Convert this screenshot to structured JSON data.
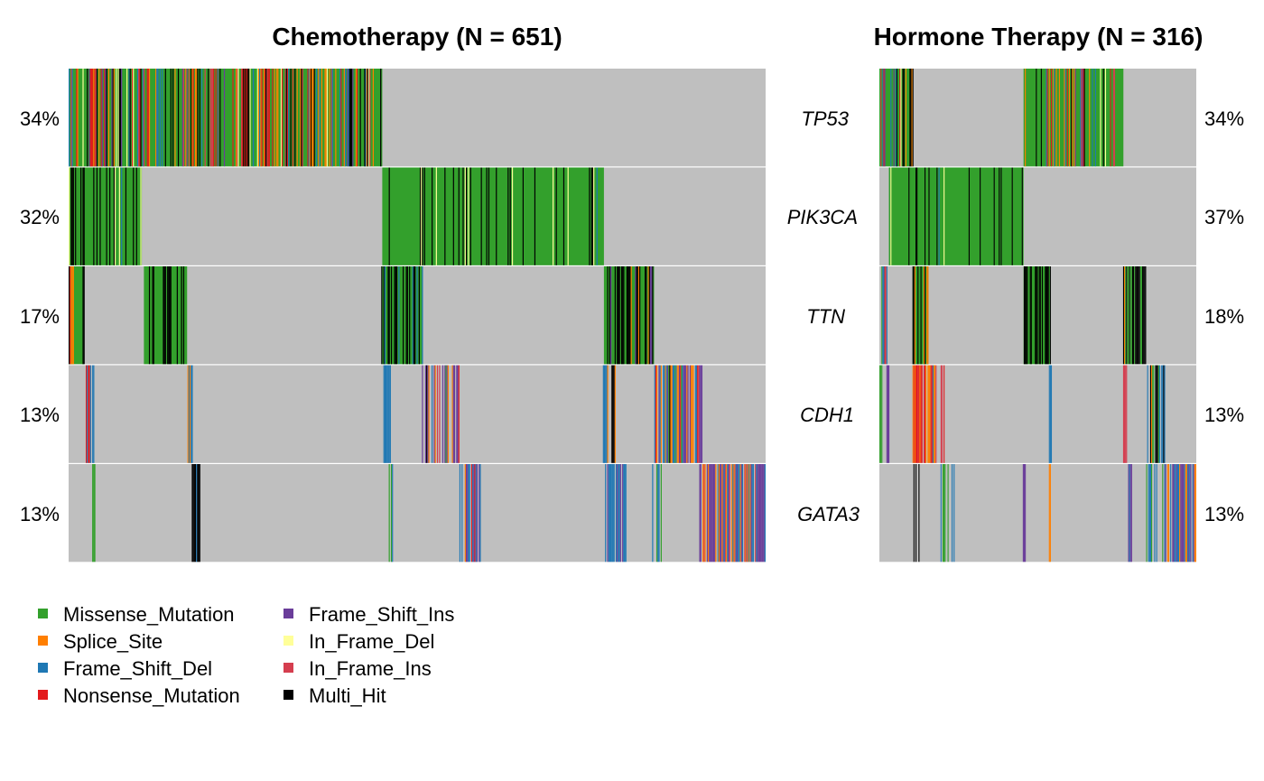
{
  "chart_data": {
    "type": "heatmap",
    "plot_kind": "co-oncoplot",
    "genes": [
      "TP53",
      "PIK3CA",
      "TTN",
      "CDH1",
      "GATA3"
    ],
    "background_color": "#BFBFBF",
    "panels": [
      {
        "title": "Chemotherapy (N = 651)",
        "n_samples": 651,
        "percents": [
          "34%",
          "32%",
          "17%",
          "13%",
          "13%"
        ]
      },
      {
        "title": "Hormone Therapy (N = 316)",
        "n_samples": 316,
        "percents": [
          "34%",
          "37%",
          "18%",
          "13%",
          "13%"
        ]
      }
    ],
    "legend": {
      "placement": "bottom-left",
      "columns": 2,
      "items": [
        {
          "label": "Missense_Mutation",
          "color": "#33A02C"
        },
        {
          "label": "Splice_Site",
          "color": "#FF7F00"
        },
        {
          "label": "Frame_Shift_Del",
          "color": "#1F78B4"
        },
        {
          "label": "Nonsense_Mutation",
          "color": "#E31A1C"
        },
        {
          "label": "Frame_Shift_Ins",
          "color": "#6A3D9A"
        },
        {
          "label": "In_Frame_Del",
          "color": "#FFFF99"
        },
        {
          "label": "In_Frame_Ins",
          "color": "#D53E4F"
        },
        {
          "label": "Multi_Hit",
          "color": "#000000"
        }
      ]
    }
  }
}
